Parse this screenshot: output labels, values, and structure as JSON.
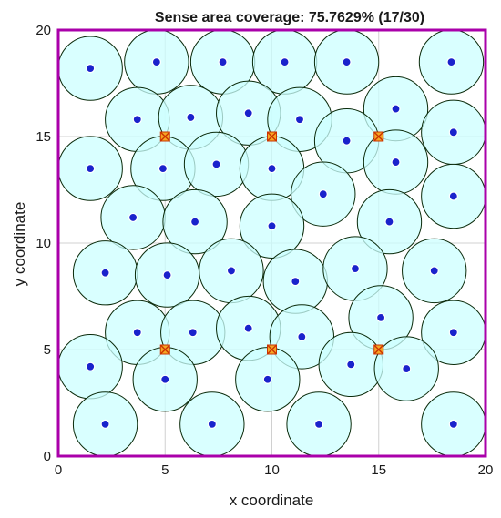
{
  "chart_data": {
    "type": "scatter",
    "title": "Sense area coverage: 75.7629% (17/30)",
    "xlabel": "x coordinate",
    "ylabel": "y coordinate",
    "xlim": [
      0,
      20
    ],
    "ylim": [
      0,
      20
    ],
    "x_ticks": [
      "0",
      "5",
      "10",
      "15",
      "20"
    ],
    "y_ticks": [
      "0",
      "5",
      "10",
      "15",
      "20"
    ],
    "grid": true,
    "sensing_radius": 1.5,
    "series": [
      {
        "role": "sensor",
        "points": [
          {
            "x": 1.5,
            "y": 18.2
          },
          {
            "x": 4.6,
            "y": 18.5
          },
          {
            "x": 7.7,
            "y": 18.5
          },
          {
            "x": 10.6,
            "y": 18.5
          },
          {
            "x": 13.5,
            "y": 18.5
          },
          {
            "x": 18.4,
            "y": 18.5
          },
          {
            "x": 3.7,
            "y": 15.8
          },
          {
            "x": 6.2,
            "y": 15.9
          },
          {
            "x": 8.9,
            "y": 16.1
          },
          {
            "x": 11.3,
            "y": 15.8
          },
          {
            "x": 15.8,
            "y": 16.3
          },
          {
            "x": 18.5,
            "y": 15.2
          },
          {
            "x": 1.5,
            "y": 13.5
          },
          {
            "x": 4.9,
            "y": 13.5
          },
          {
            "x": 7.4,
            "y": 13.7
          },
          {
            "x": 10.0,
            "y": 13.5
          },
          {
            "x": 13.5,
            "y": 14.8
          },
          {
            "x": 15.8,
            "y": 13.8
          },
          {
            "x": 12.4,
            "y": 12.3
          },
          {
            "x": 18.5,
            "y": 12.2
          },
          {
            "x": 3.5,
            "y": 11.2
          },
          {
            "x": 6.4,
            "y": 11.0
          },
          {
            "x": 10.0,
            "y": 10.8
          },
          {
            "x": 15.5,
            "y": 11.0
          },
          {
            "x": 2.2,
            "y": 8.6
          },
          {
            "x": 5.1,
            "y": 8.5
          },
          {
            "x": 8.1,
            "y": 8.7
          },
          {
            "x": 11.1,
            "y": 8.2
          },
          {
            "x": 13.9,
            "y": 8.8
          },
          {
            "x": 17.6,
            "y": 8.7
          },
          {
            "x": 3.7,
            "y": 5.8
          },
          {
            "x": 6.3,
            "y": 5.8
          },
          {
            "x": 8.9,
            "y": 6.0
          },
          {
            "x": 11.4,
            "y": 5.6
          },
          {
            "x": 15.1,
            "y": 6.5
          },
          {
            "x": 18.5,
            "y": 5.8
          },
          {
            "x": 1.5,
            "y": 4.2
          },
          {
            "x": 5.0,
            "y": 3.6
          },
          {
            "x": 9.8,
            "y": 3.6
          },
          {
            "x": 13.7,
            "y": 4.3
          },
          {
            "x": 16.3,
            "y": 4.1
          },
          {
            "x": 2.2,
            "y": 1.5
          },
          {
            "x": 7.2,
            "y": 1.5
          },
          {
            "x": 12.2,
            "y": 1.5
          },
          {
            "x": 18.5,
            "y": 1.5
          }
        ]
      },
      {
        "role": "marker",
        "points": [
          {
            "x": 5,
            "y": 15
          },
          {
            "x": 10,
            "y": 15
          },
          {
            "x": 15,
            "y": 15
          },
          {
            "x": 5,
            "y": 5
          },
          {
            "x": 10,
            "y": 5
          },
          {
            "x": 15,
            "y": 5
          }
        ]
      }
    ],
    "colors": {
      "border": "#aa00aa",
      "circle_fill": "#ccffff",
      "circle_stroke": "#0a2a0a",
      "sensor_dot": "#1a22cc",
      "marker_fill": "#f5a623",
      "marker_stroke": "#cc3300",
      "grid": "#d0d0d0"
    }
  }
}
